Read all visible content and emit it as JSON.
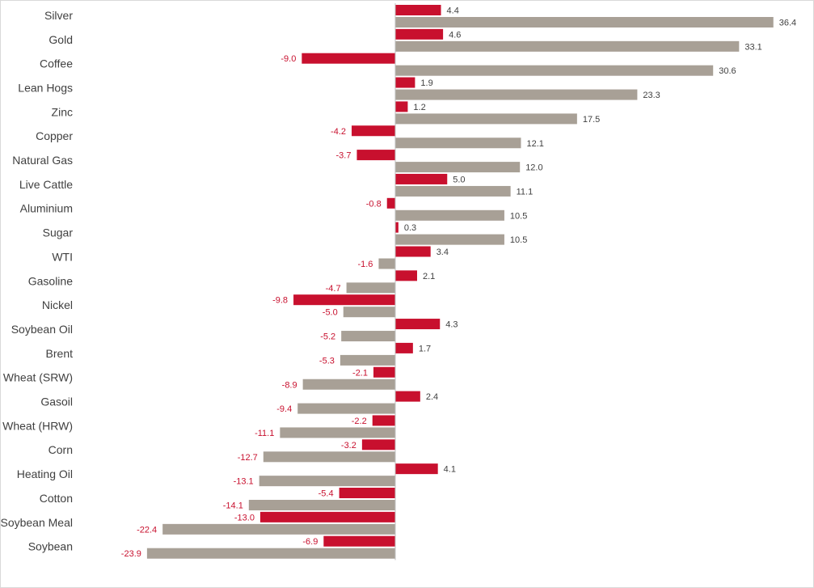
{
  "chart_data": {
    "type": "bar",
    "orientation": "horizontal",
    "categories": [
      "Silver",
      "Gold",
      "Coffee",
      "Lean Hogs",
      "Zinc",
      "Copper",
      "Natural Gas",
      "Live Cattle",
      "Aluminium",
      "Sugar",
      "WTI",
      "Gasoline",
      "Nickel",
      "Soybean Oil",
      "Brent",
      "Wheat (SRW)",
      "Gasoil",
      "Wheat (HRW)",
      "Corn",
      "Heating Oil",
      "Cotton",
      "Soybean Meal",
      "Soybean"
    ],
    "series": [
      {
        "color": "#c8102e",
        "values": [
          4.4,
          4.6,
          -9.0,
          1.9,
          1.2,
          -4.2,
          -3.7,
          5.0,
          -0.8,
          0.3,
          3.4,
          2.1,
          -9.8,
          4.3,
          1.7,
          -2.1,
          2.4,
          -2.2,
          -3.2,
          4.1,
          -5.4,
          -13.0,
          -6.9
        ],
        "labels": [
          "4.4",
          "4.6",
          "-9.0",
          "1.9",
          "1.2",
          "-4.2",
          "-3.7",
          "5.0",
          "-0.8",
          "0.3",
          "3.4",
          "2.1",
          "-9.8",
          "4.3",
          "1.7",
          "-2.1",
          "2.4",
          "-2.2",
          "-3.2",
          "4.1",
          "-5.4",
          "-13.0",
          "-6.9"
        ]
      },
      {
        "color": "#a8a096",
        "values": [
          36.4,
          33.1,
          30.6,
          23.3,
          17.5,
          12.1,
          12.0,
          11.1,
          10.5,
          10.5,
          -1.6,
          -4.7,
          -5.0,
          -5.2,
          -5.3,
          -8.9,
          -9.4,
          -11.1,
          -12.7,
          -13.1,
          -14.1,
          -22.4,
          -23.9
        ],
        "labels": [
          "36.4",
          "33.1",
          "30.6",
          "23.3",
          "17.5",
          "12.1",
          "12.0",
          "11.1",
          "10.5",
          "10.5",
          "-1.6",
          "-4.7",
          "-5.0",
          "-5.2",
          "-5.3",
          "-8.9",
          "-9.4",
          "-11.1",
          "-12.7",
          "-13.1",
          "-14.1",
          "-22.4",
          "-23.9"
        ]
      }
    ],
    "xlim": [
      -23.9,
      36.4
    ],
    "grid": false,
    "legend": "none",
    "label_colors": {
      "positive": "#404040",
      "negative": "#c8102e"
    }
  }
}
